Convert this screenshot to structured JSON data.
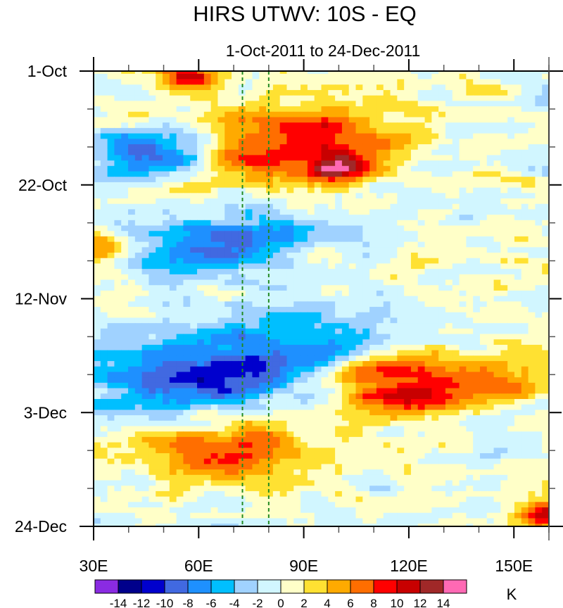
{
  "chart_data": {
    "type": "heatmap",
    "title": "HIRS UTWV: 10S - EQ",
    "subtitle": "1-Oct-2011 to 24-Dec-2011",
    "xlabel": "",
    "ylabel": "",
    "x_range": [
      30,
      160
    ],
    "x_units": "degrees East longitude",
    "y_range_days": [
      0,
      84
    ],
    "y_start_date": "1-Oct-2011",
    "y_end_date": "24-Dec-2011",
    "y_direction": "time increases downward",
    "x_ticks": [
      {
        "value": 30,
        "label": "30E"
      },
      {
        "value": 60,
        "label": "60E"
      },
      {
        "value": 90,
        "label": "90E"
      },
      {
        "value": 120,
        "label": "120E"
      },
      {
        "value": 150,
        "label": "150E"
      }
    ],
    "x_minor_ticks": [
      40,
      50,
      70,
      80,
      100,
      110,
      130,
      140,
      160
    ],
    "y_ticks": [
      {
        "day": 0,
        "label": "1-Oct"
      },
      {
        "day": 21,
        "label": "22-Oct"
      },
      {
        "day": 42,
        "label": "12-Nov"
      },
      {
        "day": 63,
        "label": "3-Dec"
      },
      {
        "day": 84,
        "label": "24-Dec"
      }
    ],
    "y_minor_tick_days": [
      7,
      14,
      28,
      35,
      49,
      56,
      70,
      77
    ],
    "reference_lines": [
      {
        "longitude": 72.5,
        "style": "dashed",
        "color": "#228B22"
      },
      {
        "longitude": 80,
        "style": "dashed",
        "color": "#228B22"
      }
    ],
    "colorbar": {
      "units": "K",
      "levels": [
        -14,
        -12,
        -10,
        -8,
        -6,
        -4,
        -2,
        0,
        2,
        4,
        6,
        8,
        10,
        12,
        14
      ],
      "colors": [
        "#8a2be2",
        "#00008b",
        "#0000cd",
        "#4169e1",
        "#1e90ff",
        "#00bfff",
        "#a0d2ff",
        "#d1f6ff",
        "#ffffc8",
        "#ffe132",
        "#ffaa00",
        "#ff6e00",
        "#ff0000",
        "#c80000",
        "#a02828",
        "#ff69b4"
      ]
    },
    "features": [
      {
        "description": "strong positive anomaly",
        "lon": 57,
        "day": 1,
        "value": 11
      },
      {
        "description": "eastward-propagating positive band",
        "lon_range": [
          60,
          110
        ],
        "day_range": [
          9,
          19
        ],
        "peak": 10
      },
      {
        "description": "positive maximum",
        "lon": 100,
        "day": 18,
        "value": 11
      },
      {
        "description": "negative anomaly",
        "lon_range": [
          35,
          60
        ],
        "day_range": [
          13,
          18
        ],
        "peak": -11
      },
      {
        "description": "negative band",
        "lon_range": [
          40,
          85
        ],
        "day_range": [
          28,
          36
        ],
        "peak": -8
      },
      {
        "description": "positive anomaly at western edge",
        "lon": 31,
        "day": 33,
        "value": 10
      },
      {
        "description": "strong negative band",
        "lon_range": [
          40,
          100
        ],
        "day_range": [
          50,
          62
        ],
        "peak": -12
      },
      {
        "description": "positive band",
        "lon_range": [
          95,
          125
        ],
        "day_range": [
          54,
          57
        ],
        "peak": 10
      },
      {
        "description": "positive band",
        "lon_range": [
          110,
          150
        ],
        "day_range": [
          57,
          61
        ],
        "peak": 11
      },
      {
        "description": "positive anomaly",
        "lon_range": [
          45,
          90
        ],
        "day_range": [
          63,
          74
        ],
        "peak": 8
      },
      {
        "description": "positive anomaly at eastern corner",
        "lon": 159,
        "day": 82,
        "value": 12
      }
    ]
  }
}
